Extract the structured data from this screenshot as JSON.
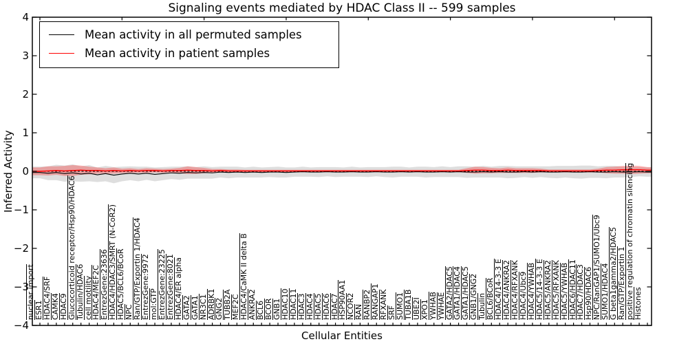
{
  "chart_data": {
    "type": "line",
    "title": "Signaling events mediated by HDAC Class II -- 599 samples",
    "xlabel": "Cellular Entities",
    "ylabel": "Inferred Activity",
    "ylim": [
      -4,
      4
    ],
    "yticks": [
      "4",
      "3",
      "2",
      "1",
      "0",
      "−1",
      "−2",
      "−3",
      "−4"
    ],
    "ytick_values": [
      4,
      3,
      2,
      1,
      0,
      -1,
      -2,
      -3,
      -4
    ],
    "grid": false,
    "legend_position": "upper left",
    "zero_line": {
      "value": 0,
      "style": "dashed",
      "color": "#000000"
    },
    "categories": [
      "nuclear import",
      "ESR1",
      "HDAC4/SRF",
      "CAMK4",
      "HDAC9",
      "Glucocorticoid receptor/Hsp90/HDAC6",
      "Tubulin/HDAC6",
      "cell motility",
      "HDAC4/MEF2C",
      "EntrezGene:23636",
      "HDAC4/HDAC3/SMRT (N-CoR2)",
      "HDAC5/BCL6/BCoR",
      "NPC",
      "Ran/GTP/Exportin 1/HDAC4",
      "EntrezGene:9972",
      "mol:GTP",
      "EntrezGene:23225",
      "EntrezGene:8021",
      "HDAC4/ER alpha",
      "GATA2",
      "GATA1",
      "NR3C1",
      "ADRBK1",
      "GNG2",
      "TUBB2A",
      "MEF2C",
      "HDAC4/CaMK II delta B",
      "ANKRA2",
      "BCL6",
      "BCOR",
      "GNB1",
      "HDAC10",
      "HDAC11",
      "HDAC3",
      "HDAC4",
      "HDAC5",
      "HDAC6",
      "HDAC7",
      "HSP90AA1",
      "NCOR2",
      "RAN",
      "RANBP2",
      "RANGAP1",
      "RFXANK",
      "SRF",
      "SUMO1",
      "TUBA1B",
      "UBE2I",
      "XPO1",
      "YWHAB",
      "YWHAE",
      "GATA2/HDAC5",
      "GATA1/HDAC4",
      "GATA1/HDAC5",
      "GNB1/GNG2",
      "Tubulin",
      "BCL6/BCoR",
      "HDAC4/14-3-3 E",
      "HDAC4/ANKRA2",
      "HDAC4/RFXANK",
      "HDAC4/Ubc9",
      "HDAC4/YWHAB",
      "HDAC5/14-3-3 E",
      "HDAC5/ANKRA2",
      "HDAC5/RFXANK",
      "HDAC5/YWHAB",
      "HDAC6/HDAC11",
      "HDAC7/HDAC3",
      "Hsp90/HDAC6",
      "NPC/RanGAP1/SUMO1/Ubc9",
      "SUMO1/HDAC4",
      "G beta1gamma2/HDAC5",
      "Ran/GTP/Exportin 1",
      "positive regulation of chromatin silencing",
      "Histones"
    ],
    "series": [
      {
        "name": "Mean activity in all permuted samples",
        "color": "#000000",
        "band_color": "rgba(0,0,0,0.13)",
        "values": [
          -0.03,
          -0.05,
          -0.03,
          -0.06,
          -0.04,
          -0.07,
          -0.05,
          -0.09,
          -0.06,
          -0.1,
          -0.07,
          -0.05,
          -0.07,
          -0.05,
          -0.08,
          -0.06,
          -0.04,
          -0.05,
          -0.03,
          -0.04,
          -0.03,
          -0.04,
          -0.02,
          -0.03,
          -0.02,
          -0.03,
          -0.02,
          -0.03,
          -0.02,
          -0.02,
          -0.03,
          -0.02,
          -0.01,
          -0.02,
          -0.02,
          -0.01,
          -0.02,
          -0.02,
          -0.01,
          -0.02,
          -0.02,
          -0.01,
          -0.02,
          -0.02,
          -0.01,
          -0.02,
          -0.01,
          -0.02,
          -0.02,
          -0.01,
          -0.02,
          -0.01,
          -0.02,
          -0.02,
          -0.01,
          -0.02,
          -0.01,
          -0.02,
          -0.02,
          -0.01,
          -0.02,
          -0.01,
          -0.02,
          -0.02,
          -0.01,
          -0.02,
          -0.02,
          -0.01,
          -0.02,
          -0.02,
          -0.01,
          -0.02,
          -0.02,
          -0.01,
          -0.02
        ],
        "band_halfwidth": [
          0.15,
          0.18,
          0.2,
          0.21,
          0.22,
          0.2,
          0.21,
          0.19,
          0.2,
          0.21,
          0.19,
          0.18,
          0.19,
          0.17,
          0.18,
          0.17,
          0.16,
          0.17,
          0.16,
          0.15,
          0.16,
          0.15,
          0.14,
          0.15,
          0.14,
          0.13,
          0.14,
          0.13,
          0.13,
          0.14,
          0.13,
          0.12,
          0.13,
          0.12,
          0.13,
          0.12,
          0.13,
          0.12,
          0.13,
          0.12,
          0.13,
          0.12,
          0.13,
          0.14,
          0.13,
          0.12,
          0.13,
          0.14,
          0.13,
          0.14,
          0.13,
          0.14,
          0.15,
          0.14,
          0.15,
          0.14,
          0.15,
          0.16,
          0.15,
          0.14,
          0.15,
          0.14,
          0.15,
          0.16,
          0.15,
          0.16,
          0.17,
          0.16,
          0.15,
          0.16,
          0.15,
          0.14,
          0.13,
          0.12,
          0.12
        ]
      },
      {
        "name": "Mean activity in patient samples",
        "color": "#ff0000",
        "band_color": "rgba(255,0,0,0.28)",
        "values": [
          0.0,
          0.01,
          0.02,
          0.01,
          0.02,
          0.03,
          0.02,
          0.02,
          0.01,
          0.02,
          0.01,
          0.02,
          0.01,
          0.02,
          0.02,
          0.01,
          0.02,
          0.02,
          0.03,
          0.02,
          0.02,
          0.01,
          0.02,
          0.01,
          0.01,
          0.01,
          0.01,
          0.01,
          0.01,
          0.01,
          0.01,
          0.01,
          0.01,
          0.01,
          0.01,
          0.01,
          0.01,
          0.01,
          0.01,
          0.01,
          0.01,
          0.01,
          0.01,
          0.01,
          0.01,
          0.01,
          0.01,
          0.01,
          0.01,
          0.01,
          0.01,
          0.01,
          0.02,
          0.03,
          0.03,
          0.02,
          0.02,
          0.03,
          0.02,
          0.02,
          0.02,
          0.02,
          0.01,
          0.01,
          0.01,
          0.01,
          0.01,
          0.01,
          0.02,
          0.03,
          0.03,
          0.04,
          0.04,
          0.04,
          0.03
        ],
        "band_halfwidth": [
          0.1,
          0.12,
          0.11,
          0.13,
          0.14,
          0.12,
          0.1,
          0.08,
          0.07,
          0.08,
          0.06,
          0.06,
          0.05,
          0.06,
          0.05,
          0.05,
          0.05,
          0.07,
          0.1,
          0.09,
          0.07,
          0.05,
          0.04,
          0.04,
          0.04,
          0.03,
          0.03,
          0.03,
          0.03,
          0.03,
          0.03,
          0.03,
          0.03,
          0.03,
          0.03,
          0.03,
          0.03,
          0.03,
          0.03,
          0.03,
          0.03,
          0.03,
          0.03,
          0.03,
          0.03,
          0.03,
          0.03,
          0.03,
          0.03,
          0.03,
          0.03,
          0.03,
          0.06,
          0.09,
          0.08,
          0.07,
          0.06,
          0.07,
          0.06,
          0.06,
          0.06,
          0.05,
          0.04,
          0.04,
          0.04,
          0.04,
          0.04,
          0.04,
          0.05,
          0.08,
          0.09,
          0.1,
          0.11,
          0.1,
          0.08
        ]
      }
    ]
  }
}
